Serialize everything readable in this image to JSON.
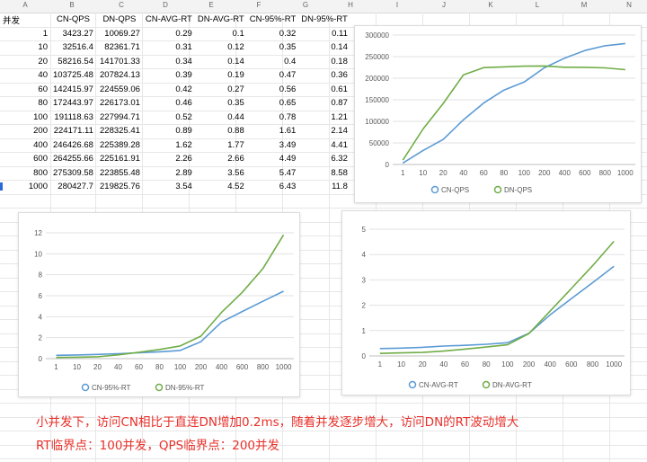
{
  "columns": [
    "A",
    "B",
    "C",
    "D",
    "E",
    "F",
    "G",
    "H",
    "I",
    "J",
    "K",
    "L",
    "M",
    "N"
  ],
  "table": {
    "headers": [
      "并发",
      "CN-QPS",
      "DN-QPS",
      "CN-AVG-RT",
      "DN-AVG-RT",
      "CN-95%-RT",
      "DN-95%-RT"
    ],
    "rows": [
      [
        "1",
        "3423.27",
        "10069.27",
        "0.29",
        "0.1",
        "0.32",
        "0.11"
      ],
      [
        "10",
        "32516.4",
        "82361.71",
        "0.31",
        "0.12",
        "0.35",
        "0.14"
      ],
      [
        "20",
        "58216.54",
        "141701.33",
        "0.34",
        "0.14",
        "0.4",
        "0.18"
      ],
      [
        "40",
        "103725.48",
        "207824.13",
        "0.39",
        "0.19",
        "0.47",
        "0.36"
      ],
      [
        "60",
        "142415.97",
        "224559.06",
        "0.42",
        "0.27",
        "0.56",
        "0.61"
      ],
      [
        "80",
        "172443.97",
        "226173.01",
        "0.46",
        "0.35",
        "0.65",
        "0.87"
      ],
      [
        "100",
        "191118.63",
        "227994.71",
        "0.52",
        "0.44",
        "0.78",
        "1.21"
      ],
      [
        "200",
        "224171.11",
        "228325.41",
        "0.89",
        "0.88",
        "1.61",
        "2.14"
      ],
      [
        "400",
        "246426.68",
        "225389.28",
        "1.62",
        "1.77",
        "3.49",
        "4.41"
      ],
      [
        "600",
        "264255.66",
        "225161.91",
        "2.26",
        "2.66",
        "4.49",
        "6.32"
      ],
      [
        "800",
        "275309.58",
        "223855.48",
        "2.89",
        "3.56",
        "5.47",
        "8.58"
      ],
      [
        "1000",
        "280427.7",
        "219825.76",
        "3.54",
        "4.52",
        "6.43",
        "11.8"
      ]
    ]
  },
  "chart_data": [
    {
      "type": "line",
      "categories": [
        "1",
        "10",
        "20",
        "40",
        "60",
        "80",
        "100",
        "200",
        "400",
        "600",
        "800",
        "1000"
      ],
      "ylim": [
        0,
        300000
      ],
      "yticks": [
        "0",
        "50000",
        "100000",
        "150000",
        "200000",
        "250000",
        "300000"
      ],
      "series": [
        {
          "name": "CN-QPS",
          "color": "#5b9bd5",
          "values": [
            3423.27,
            32516.4,
            58216.54,
            103725.48,
            142415.97,
            172443.97,
            191118.63,
            224171.11,
            246426.68,
            264255.66,
            275309.58,
            280427.7
          ]
        },
        {
          "name": "DN-QPS",
          "color": "#70ad47",
          "values": [
            10069.27,
            82361.71,
            141701.33,
            207824.13,
            224559.06,
            226173.01,
            227994.71,
            228325.41,
            225389.28,
            225161.91,
            223855.48,
            219825.76
          ]
        }
      ],
      "legend": "bottom",
      "grid": true
    },
    {
      "type": "line",
      "categories": [
        "1",
        "10",
        "20",
        "40",
        "60",
        "80",
        "100",
        "200",
        "400",
        "600",
        "800",
        "1000"
      ],
      "ylim": [
        0,
        12
      ],
      "yticks": [
        "0",
        "2",
        "4",
        "6",
        "8",
        "10",
        "12"
      ],
      "series": [
        {
          "name": "CN-95%-RT",
          "color": "#5b9bd5",
          "values": [
            0.32,
            0.35,
            0.4,
            0.47,
            0.56,
            0.65,
            0.78,
            1.61,
            3.49,
            4.49,
            5.47,
            6.43
          ]
        },
        {
          "name": "DN-95%-RT",
          "color": "#70ad47",
          "values": [
            0.11,
            0.14,
            0.18,
            0.36,
            0.61,
            0.87,
            1.21,
            2.14,
            4.41,
            6.32,
            8.58,
            11.8
          ]
        }
      ],
      "legend": "bottom",
      "grid": true
    },
    {
      "type": "line",
      "categories": [
        "1",
        "10",
        "20",
        "40",
        "60",
        "80",
        "100",
        "200",
        "400",
        "600",
        "800",
        "1000"
      ],
      "ylim": [
        0,
        5
      ],
      "yticks": [
        "0",
        "1",
        "2",
        "3",
        "4",
        "5"
      ],
      "series": [
        {
          "name": "CN-AVG-RT",
          "color": "#5b9bd5",
          "values": [
            0.29,
            0.31,
            0.34,
            0.39,
            0.42,
            0.46,
            0.52,
            0.89,
            1.62,
            2.26,
            2.89,
            3.54
          ]
        },
        {
          "name": "DN-AVG-RT",
          "color": "#70ad47",
          "values": [
            0.1,
            0.12,
            0.14,
            0.19,
            0.27,
            0.35,
            0.44,
            0.88,
            1.77,
            2.66,
            3.56,
            4.52
          ]
        }
      ],
      "legend": "bottom",
      "grid": true
    }
  ],
  "notes": {
    "line1": "小并发下，访问CN相比于直连DN增加0.2ms，随着并发逐步增大，访问DN的RT波动增大",
    "line2": "RT临界点：100并发，QPS临界点：200并发"
  }
}
